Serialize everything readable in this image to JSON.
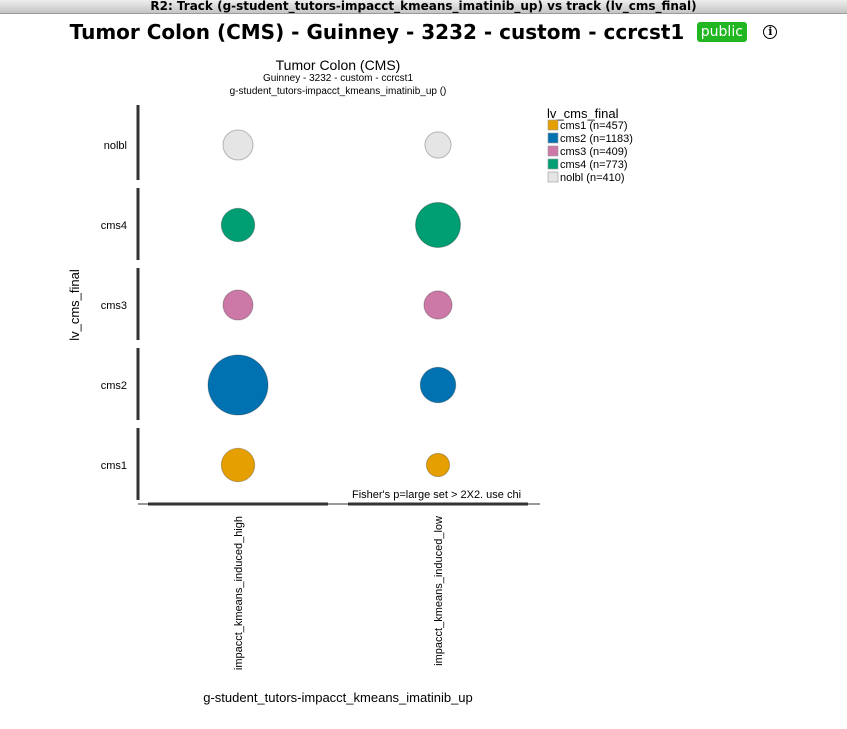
{
  "window": {
    "title": "R2: Track (g-student_tutors-impacct_kmeans_imatinib_up) vs track (lv_cms_final)"
  },
  "header": {
    "title": "Tumor Colon (CMS) - Guinney - 3232 - custom - ccrcst1",
    "badge": "public",
    "info_icon": "info-icon"
  },
  "colors": {
    "cms1": "#E69F00",
    "cms2": "#0072B2",
    "cms3": "#CC79A7",
    "cms4": "#009E73",
    "nolbl": "#E5E5E5",
    "badge": "#22B622"
  },
  "chart_data": {
    "type": "scatter",
    "title": "Tumor Colon (CMS)",
    "subtitle": [
      "Guinney - 3232 - custom - ccrcst1",
      "g-student_tutors-impacct_kmeans_imatinib_up ()"
    ],
    "xlabel": "g-student_tutors-impacct_kmeans_imatinib_up",
    "ylabel": "lv_cms_final",
    "x_categories": [
      "impacct_kmeans_induced_high",
      "impacct_kmeans_induced_low"
    ],
    "y_categories": [
      "cms1",
      "cms2",
      "cms3",
      "cms4",
      "nolbl"
    ],
    "legend": {
      "title": "lv_cms_final",
      "position": "top-right",
      "entries": [
        {
          "key": "cms1",
          "label": "cms1 (n=457)"
        },
        {
          "key": "cms2",
          "label": "cms2 (n=1183)"
        },
        {
          "key": "cms3",
          "label": "cms3 (n=409)"
        },
        {
          "key": "cms4",
          "label": "cms4 (n=773)"
        },
        {
          "key": "nolbl",
          "label": "nolbl (n=410)"
        }
      ]
    },
    "bubble_relative_size": [
      {
        "x": "impacct_kmeans_induced_high",
        "y": "cms1",
        "size": 0.31
      },
      {
        "x": "impacct_kmeans_induced_high",
        "y": "cms2",
        "size": 1.0
      },
      {
        "x": "impacct_kmeans_induced_high",
        "y": "cms3",
        "size": 0.25
      },
      {
        "x": "impacct_kmeans_induced_high",
        "y": "cms4",
        "size": 0.31
      },
      {
        "x": "impacct_kmeans_induced_high",
        "y": "nolbl",
        "size": 0.25
      },
      {
        "x": "impacct_kmeans_induced_low",
        "y": "cms1",
        "size": 0.15
      },
      {
        "x": "impacct_kmeans_induced_low",
        "y": "cms2",
        "size": 0.35
      },
      {
        "x": "impacct_kmeans_induced_low",
        "y": "cms3",
        "size": 0.22
      },
      {
        "x": "impacct_kmeans_induced_low",
        "y": "cms4",
        "size": 0.56
      },
      {
        "x": "impacct_kmeans_induced_low",
        "y": "nolbl",
        "size": 0.19
      }
    ],
    "annotation": "Fisher's p=large set > 2X2. use chi",
    "grid": false
  }
}
